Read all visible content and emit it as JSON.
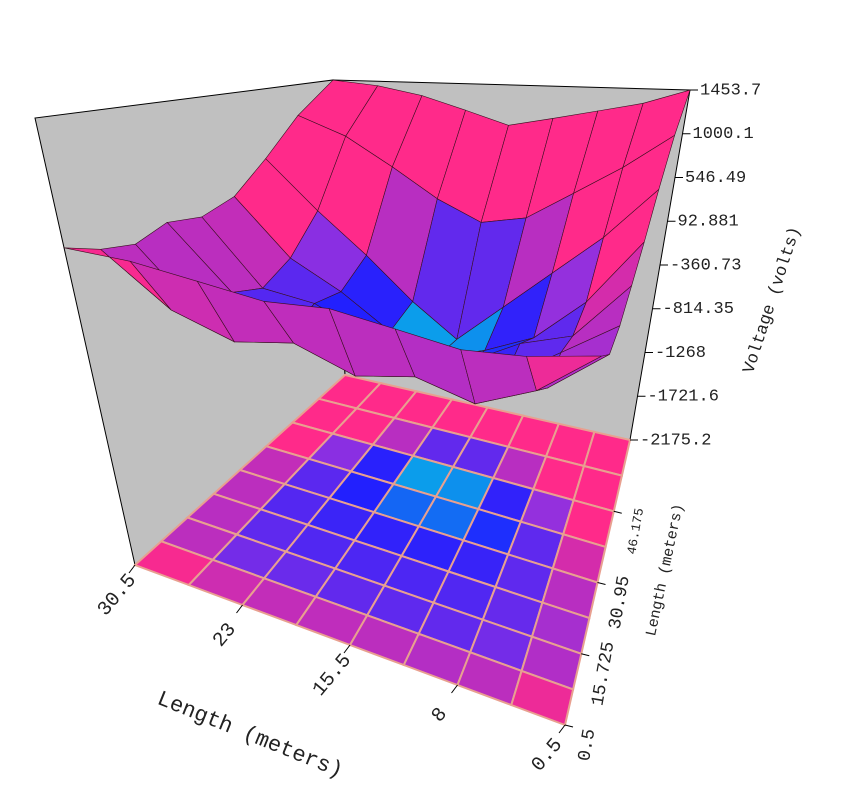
{
  "chart_data": {
    "type": "surface3d",
    "x": [
      0.5,
      4.25,
      8,
      11.75,
      15.5,
      19.25,
      23,
      26.75,
      30.5
    ],
    "y": [
      0.5,
      8.1125,
      15.725,
      23.3375,
      30.95,
      38.5625,
      46.175,
      53.7875,
      61.4
    ],
    "z": [
      [
        400,
        250,
        100,
        150,
        300,
        500,
        800,
        1150,
        1453
      ],
      [
        300,
        -100,
        -250,
        -150,
        -200,
        -100,
        300,
        800,
        1300
      ],
      [
        250,
        -300,
        -200,
        -450,
        -350,
        -500,
        -100,
        500,
        1200
      ],
      [
        300,
        -200,
        -400,
        -300,
        -600,
        -700,
        -500,
        200,
        1100
      ],
      [
        350,
        -300,
        -250,
        -450,
        -500,
        -850,
        -900,
        100,
        1000
      ],
      [
        300,
        -150,
        -400,
        -300,
        -550,
        -700,
        -600,
        300,
        1150
      ],
      [
        350,
        -250,
        -200,
        -450,
        -350,
        -400,
        -200,
        600,
        1300
      ],
      [
        400,
        -100,
        -300,
        -200,
        -300,
        -150,
        200,
        900,
        1400
      ],
      [
        400,
        300,
        250,
        350,
        300,
        400,
        700,
        1100,
        1453
      ]
    ],
    "xlim": [
      0.5,
      30.5
    ],
    "ylim": [
      0.5,
      61.4
    ],
    "zlim": [
      -2175.2,
      1453.7
    ],
    "xticks": [
      30.5,
      23,
      15.5,
      8,
      0.5
    ],
    "yticks": [
      0.5,
      15.725,
      30.95,
      46.175
    ],
    "zticks": [
      1453.7,
      1000.1,
      546.49,
      92.881,
      -360.73,
      -814.35,
      -1268,
      -1721.6,
      -2175.2
    ],
    "xlabel": "Length (meters)",
    "ylabel": "Length (meters)",
    "zlabel": "Voltage (volts)",
    "colormap": [
      "#00e0e0",
      "#2020ff",
      "#9030e0",
      "#ff2a8a"
    ],
    "mesh_color": "#3a1020",
    "wall_color": "#c0c0c0"
  }
}
